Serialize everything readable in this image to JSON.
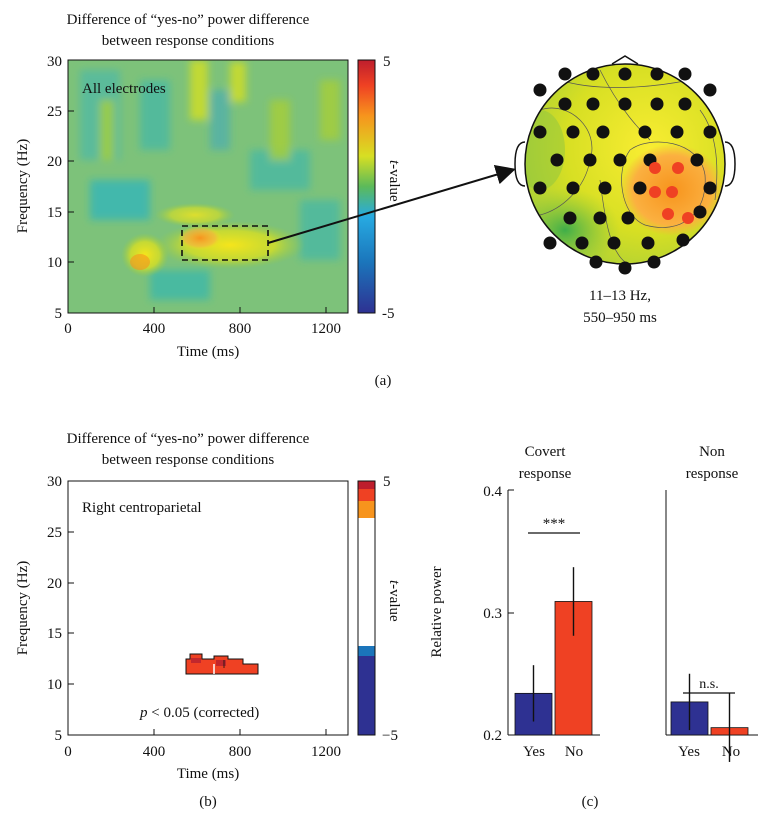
{
  "panel_a": {
    "title_line1": "Difference of “yes-no” power difference",
    "title_line2": "between response conditions",
    "annotation": "All electrodes",
    "xlabel": "Time (ms)",
    "ylabel": "Frequency (Hz)",
    "x_ticks": [
      "0",
      "400",
      "800",
      "1200"
    ],
    "y_ticks": [
      "5",
      "10",
      "15",
      "20",
      "25",
      "30"
    ],
    "colorbar_max": "5",
    "colorbar_min": "-5",
    "colorbar_label_italic": "t",
    "colorbar_label_rest": "-value",
    "topo_caption_line1": "11–13 Hz,",
    "topo_caption_line2": "550–950 ms",
    "panel_label": "(a)"
  },
  "panel_b": {
    "title_line1": "Difference of “yes-no” power difference",
    "title_line2": "between response conditions",
    "annotation": "Right centroparietal",
    "p_italic": "p",
    "p_rest": " < 0.05 (corrected)",
    "xlabel": "Time (ms)",
    "ylabel": "Frequency (Hz)",
    "x_ticks": [
      "0",
      "400",
      "800",
      "1200"
    ],
    "y_ticks": [
      "5",
      "10",
      "15",
      "20",
      "25",
      "30"
    ],
    "colorbar_max": "5",
    "colorbar_min": "−5",
    "colorbar_label_italic": "t",
    "colorbar_label_rest": "-value",
    "panel_label": "(b)"
  },
  "panel_c": {
    "ylabel": "Relative power",
    "y_ticks": [
      "0.2",
      "0.3",
      "0.4"
    ],
    "group1_title_line1": "Covert",
    "group1_title_line2": "response",
    "group2_title_line1": "Non",
    "group2_title_line2": "response",
    "sig1": "***",
    "sig2": "n.s.",
    "categories": [
      "Yes",
      "No"
    ],
    "panel_label": "(c)"
  },
  "colors": {
    "yes_bar": "#2e3192",
    "no_bar": "#ef4123",
    "heat_high": "#c1272d",
    "heat_mid": "#f4e01c",
    "heat_neutral": "#7fbf5a",
    "heat_low": "#2e3192"
  },
  "chart_data": [
    {
      "type": "heatmap",
      "title": "Difference of “yes-no” power difference between response conditions",
      "annotation": "All electrodes",
      "xlabel": "Time (ms)",
      "ylabel": "Frequency (Hz)",
      "xlim": [
        0,
        1300
      ],
      "ylim": [
        5,
        30
      ],
      "colorbar": {
        "label": "t-value",
        "range": [
          -5,
          5
        ]
      },
      "highlight_window": {
        "time_ms": [
          550,
          950
        ],
        "freq_hz": [
          11,
          13
        ]
      }
    },
    {
      "type": "heatmap",
      "title": "Difference of “yes-no” power difference between response conditions",
      "annotation": "Right centroparietal",
      "note": "p < 0.05 (corrected)",
      "xlabel": "Time (ms)",
      "ylabel": "Frequency (Hz)",
      "xlim": [
        0,
        1300
      ],
      "ylim": [
        5,
        30
      ],
      "colorbar": {
        "label": "t-value",
        "range": [
          -5,
          5
        ]
      },
      "significant_cluster": {
        "time_ms": [
          550,
          950
        ],
        "freq_hz": [
          11,
          13
        ]
      }
    },
    {
      "type": "bar",
      "ylabel": "Relative power",
      "ylim": [
        0.2,
        0.4
      ],
      "groups": [
        {
          "name": "Covert response",
          "categories": [
            "Yes",
            "No"
          ],
          "values": [
            0.234,
            0.309
          ],
          "errors": [
            0.023,
            0.028
          ],
          "significance": "***"
        },
        {
          "name": "Non response",
          "categories": [
            "Yes",
            "No"
          ],
          "values": [
            0.227,
            0.206
          ],
          "errors": [
            0.023,
            0.028
          ],
          "significance": "n.s."
        }
      ]
    }
  ]
}
